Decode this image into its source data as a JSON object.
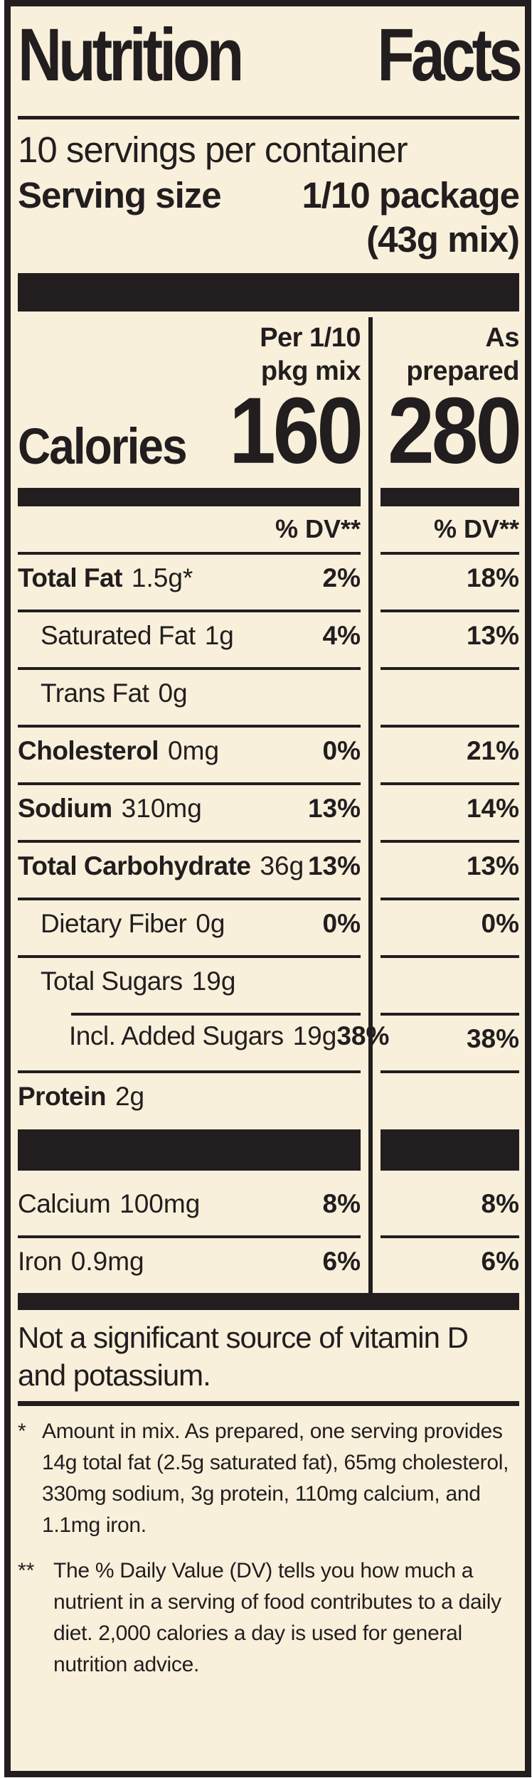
{
  "label": {
    "title": {
      "word1": "Nutrition",
      "word2": "Facts"
    },
    "servings_per_container": "10 servings per container",
    "serving_size_label": "Serving size",
    "serving_size_value_line1": "1/10 package",
    "serving_size_value_line2": "(43g mix)",
    "columns": {
      "mix_header_line1": "Per 1/10",
      "mix_header_line2": "pkg mix",
      "prepared_header_line1": "As",
      "prepared_header_line2": "prepared"
    },
    "calories": {
      "label": "Calories",
      "mix": "160",
      "prepared": "280"
    },
    "dv_header": "% DV**",
    "rows": [
      {
        "name": "Total Fat",
        "amount": "1.5g*",
        "dv_mix": "2%",
        "dv_prepared": "18%"
      },
      {
        "name": "Saturated Fat",
        "amount": "1g",
        "dv_mix": "4%",
        "dv_prepared": "13%"
      },
      {
        "name": "Trans Fat",
        "amount": "0g",
        "dv_mix": "",
        "dv_prepared": ""
      },
      {
        "name": "Cholesterol",
        "amount": "0mg",
        "dv_mix": "0%",
        "dv_prepared": "21%"
      },
      {
        "name": "Sodium",
        "amount": "310mg",
        "dv_mix": "13%",
        "dv_prepared": "14%"
      },
      {
        "name": "Total Carbohydrate",
        "amount": "36g",
        "dv_mix": "13%",
        "dv_prepared": "13%"
      },
      {
        "name": "Dietary Fiber",
        "amount": "0g",
        "dv_mix": "0%",
        "dv_prepared": "0%"
      },
      {
        "name": "Total Sugars",
        "amount": "19g",
        "dv_mix": "",
        "dv_prepared": ""
      },
      {
        "name": "Incl. Added Sugars",
        "amount": "19g",
        "dv_mix": "38%",
        "dv_prepared": "38%"
      },
      {
        "name": "Protein",
        "amount": "2g",
        "dv_mix": "",
        "dv_prepared": ""
      },
      {
        "name": "Calcium",
        "amount": "100mg",
        "dv_mix": "8%",
        "dv_prepared": "8%"
      },
      {
        "name": "Iron",
        "amount": "0.9mg",
        "dv_mix": "6%",
        "dv_prepared": "6%"
      }
    ],
    "not_significant": "Not a significant source of vitamin D and potassium.",
    "footnotes": [
      {
        "marker": "*",
        "text": "Amount in mix. As prepared, one serving provides 14g total fat (2.5g saturated fat), 65mg cholesterol, 330mg sodium, 3g protein, 110mg calcium, and 1.1mg iron."
      },
      {
        "marker": "**",
        "text": "The % Daily Value (DV) tells you how much a nutrient in a serving of food contributes to a daily diet. 2,000 calories a day is used for general nutrition advice."
      }
    ],
    "colors": {
      "background": "#f8f0db",
      "ink": "#221e1f"
    }
  }
}
